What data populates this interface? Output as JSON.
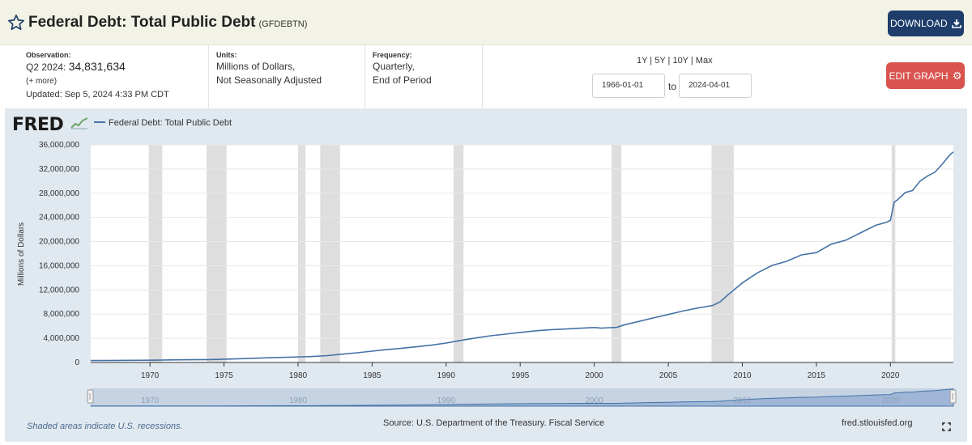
{
  "header": {
    "title": "Federal Debt: Total Public Debt",
    "series_code": "(GFDEBTN)",
    "download_label": "DOWNLOAD"
  },
  "observation": {
    "label": "Observation:",
    "period": "Q2 2024:",
    "value": "34,831,634",
    "more": "(+ more)",
    "updated": "Updated: Sep 5, 2024 4:33 PM CDT"
  },
  "units": {
    "label": "Units:",
    "line1": "Millions of Dollars,",
    "line2": "Not Seasonally Adjusted"
  },
  "frequency": {
    "label": "Frequency:",
    "line1": "Quarterly,",
    "line2": "End of Period"
  },
  "range": {
    "links": "1Y | 5Y | 10Y | Max",
    "start": "1966-01-01",
    "to_label": "to",
    "end": "2024-04-01"
  },
  "edit_label": "EDIT GRAPH",
  "legend_label": "Federal Debt: Total Public Debt",
  "logo_text": "FRED",
  "footer": {
    "note": "Shaded areas indicate U.S. recessions.",
    "source": "Source: U.S. Department of the Treasury. Fiscal Service",
    "url": "fred.stlouisfed.org"
  },
  "colors": {
    "line": "#4572a7",
    "recession": "#dedede",
    "panel": "#e1e9f0",
    "download": "#1e3d6b",
    "edit": "#d9534f"
  },
  "chart_data": {
    "type": "line",
    "ylabel": "Millions of Dollars",
    "xlim": [
      1966.0,
      2024.25
    ],
    "ylim": [
      0,
      36000000
    ],
    "yticks": [
      0,
      4000000,
      8000000,
      12000000,
      16000000,
      20000000,
      24000000,
      28000000,
      32000000,
      36000000
    ],
    "ytick_labels": [
      "0",
      "4,000,000",
      "8,000,000",
      "12,000,000",
      "16,000,000",
      "20,000,000",
      "24,000,000",
      "28,000,000",
      "32,000,000",
      "36,000,000"
    ],
    "xticks": [
      1970,
      1975,
      1980,
      1985,
      1990,
      1995,
      2000,
      2005,
      2010,
      2015,
      2020
    ],
    "xtick_labels": [
      "1970",
      "1975",
      "1980",
      "1985",
      "1990",
      "1995",
      "2000",
      "2005",
      "2010",
      "2015",
      "2020"
    ],
    "recessions": [
      [
        1969.92,
        1970.83
      ],
      [
        1973.83,
        1975.17
      ],
      [
        1980.0,
        1980.5
      ],
      [
        1981.5,
        1982.83
      ],
      [
        1990.5,
        1991.17
      ],
      [
        2001.17,
        2001.83
      ],
      [
        2007.92,
        2009.42
      ],
      [
        2020.08,
        2020.33
      ]
    ],
    "grid": true,
    "legend": "top-left",
    "series": [
      {
        "name": "Federal Debt: Total Public Debt",
        "x": [
          1966.0,
          1968.0,
          1970.0,
          1972.0,
          1974.0,
          1976.0,
          1978.0,
          1980.0,
          1981.0,
          1982.0,
          1983.0,
          1984.0,
          1985.0,
          1986.0,
          1987.0,
          1988.0,
          1989.0,
          1990.0,
          1991.0,
          1992.0,
          1993.0,
          1994.0,
          1995.0,
          1996.0,
          1997.0,
          1998.0,
          1999.0,
          2000.0,
          2000.5,
          2001.0,
          2001.5,
          2002.0,
          2003.0,
          2004.0,
          2005.0,
          2006.0,
          2007.0,
          2008.0,
          2008.5,
          2009.0,
          2010.0,
          2011.0,
          2012.0,
          2013.0,
          2014.0,
          2015.0,
          2016.0,
          2017.0,
          2018.0,
          2019.0,
          2019.75,
          2020.0,
          2020.25,
          2020.5,
          2021.0,
          2021.5,
          2022.0,
          2022.5,
          2023.0,
          2023.5,
          2024.0,
          2024.25
        ],
        "y": [
          320000,
          345000,
          380000,
          440000,
          480000,
          620000,
          780000,
          910000,
          995000,
          1140000,
          1380000,
          1610000,
          1880000,
          2130000,
          2350000,
          2600000,
          2860000,
          3210000,
          3660000,
          4060000,
          4410000,
          4690000,
          4970000,
          5230000,
          5410000,
          5530000,
          5660000,
          5780000,
          5680000,
          5760000,
          5800000,
          6200000,
          6780000,
          7380000,
          7930000,
          8510000,
          9010000,
          9440000,
          10030000,
          11130000,
          13160000,
          14800000,
          16050000,
          16740000,
          17800000,
          18170000,
          19570000,
          20240000,
          21460000,
          22680000,
          23200000,
          23500000,
          26500000,
          26950000,
          28100000,
          28450000,
          30000000,
          30830000,
          31460000,
          32800000,
          34300000,
          34831634
        ]
      }
    ],
    "navigator_xticks": [
      1970,
      1980,
      1990,
      2000,
      2010,
      2020
    ],
    "navigator_xtick_labels": [
      "1970",
      "1980",
      "1990",
      "2000",
      "2010",
      "2020"
    ]
  }
}
